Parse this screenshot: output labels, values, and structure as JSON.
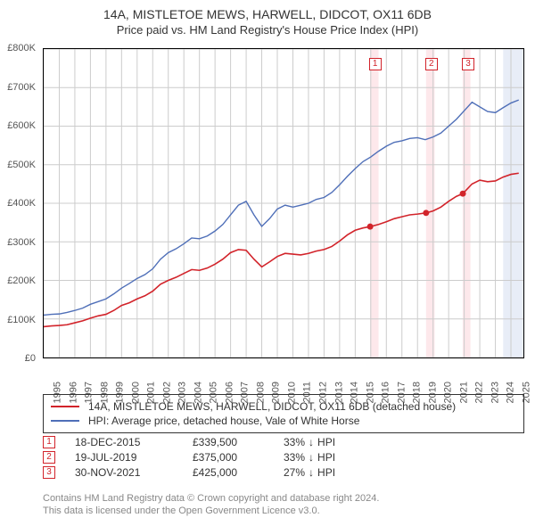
{
  "title": {
    "main": "14A, MISTLETOE MEWS, HARWELL, DIDCOT, OX11 6DB",
    "sub": "Price paid vs. HM Land Registry's House Price Index (HPI)",
    "fontsize_main": 14,
    "fontsize_sub": 13
  },
  "chart": {
    "type": "line",
    "background_color": "#ffffff",
    "border_color": "#000000",
    "grid_color": "#cccccc",
    "ylim": [
      0,
      800000
    ],
    "ytick_step": 100000,
    "yticks": [
      "£0",
      "£100K",
      "£200K",
      "£300K",
      "£400K",
      "£500K",
      "£600K",
      "£700K",
      "£800K"
    ],
    "xlim": [
      1995,
      2025.8
    ],
    "xticks": [
      1995,
      1996,
      1997,
      1998,
      1999,
      2000,
      2001,
      2002,
      2003,
      2004,
      2005,
      2006,
      2007,
      2008,
      2009,
      2010,
      2011,
      2012,
      2013,
      2014,
      2015,
      2016,
      2017,
      2018,
      2019,
      2020,
      2021,
      2022,
      2023,
      2024,
      2025
    ],
    "xtick_fontsize": 11,
    "ytick_fontsize": 11,
    "tick_color": "#555555",
    "bands": [
      {
        "from": 2015.96,
        "to": 2016.5,
        "color": "#fde8eb"
      },
      {
        "from": 2019.55,
        "to": 2020.1,
        "color": "#fde8eb"
      },
      {
        "from": 2021.9,
        "to": 2022.4,
        "color": "#fde8eb"
      },
      {
        "from": 2024.5,
        "to": 2025.8,
        "color": "#e8edf7"
      }
    ],
    "series": [
      {
        "name": "hpi",
        "color": "#4f6fb8",
        "line_width": 1.4,
        "points": [
          [
            1995,
            110000
          ],
          [
            1995.5,
            112000
          ],
          [
            1996,
            113000
          ],
          [
            1996.5,
            117000
          ],
          [
            1997,
            122000
          ],
          [
            1997.5,
            128000
          ],
          [
            1998,
            138000
          ],
          [
            1998.5,
            145000
          ],
          [
            1999,
            152000
          ],
          [
            1999.5,
            165000
          ],
          [
            2000,
            180000
          ],
          [
            2000.5,
            192000
          ],
          [
            2001,
            205000
          ],
          [
            2001.5,
            215000
          ],
          [
            2002,
            230000
          ],
          [
            2002.5,
            255000
          ],
          [
            2003,
            272000
          ],
          [
            2003.5,
            282000
          ],
          [
            2004,
            295000
          ],
          [
            2004.5,
            310000
          ],
          [
            2005,
            308000
          ],
          [
            2005.5,
            315000
          ],
          [
            2006,
            328000
          ],
          [
            2006.5,
            345000
          ],
          [
            2007,
            370000
          ],
          [
            2007.5,
            395000
          ],
          [
            2008,
            405000
          ],
          [
            2008.5,
            370000
          ],
          [
            2009,
            340000
          ],
          [
            2009.5,
            360000
          ],
          [
            2010,
            385000
          ],
          [
            2010.5,
            395000
          ],
          [
            2011,
            390000
          ],
          [
            2011.5,
            395000
          ],
          [
            2012,
            400000
          ],
          [
            2012.5,
            410000
          ],
          [
            2013,
            415000
          ],
          [
            2013.5,
            428000
          ],
          [
            2014,
            448000
          ],
          [
            2014.5,
            470000
          ],
          [
            2015,
            490000
          ],
          [
            2015.5,
            508000
          ],
          [
            2016,
            520000
          ],
          [
            2016.5,
            535000
          ],
          [
            2017,
            548000
          ],
          [
            2017.5,
            558000
          ],
          [
            2018,
            562000
          ],
          [
            2018.5,
            568000
          ],
          [
            2019,
            570000
          ],
          [
            2019.5,
            565000
          ],
          [
            2020,
            572000
          ],
          [
            2020.5,
            582000
          ],
          [
            2021,
            600000
          ],
          [
            2021.5,
            618000
          ],
          [
            2022,
            640000
          ],
          [
            2022.5,
            662000
          ],
          [
            2023,
            650000
          ],
          [
            2023.5,
            638000
          ],
          [
            2024,
            635000
          ],
          [
            2024.5,
            648000
          ],
          [
            2025,
            660000
          ],
          [
            2025.5,
            668000
          ]
        ]
      },
      {
        "name": "price-paid",
        "color": "#d2232a",
        "line_width": 1.6,
        "points": [
          [
            1995,
            80000
          ],
          [
            1995.5,
            82000
          ],
          [
            1996,
            83000
          ],
          [
            1996.5,
            85000
          ],
          [
            1997,
            90000
          ],
          [
            1997.5,
            95000
          ],
          [
            1998,
            102000
          ],
          [
            1998.5,
            108000
          ],
          [
            1999,
            112000
          ],
          [
            1999.5,
            122000
          ],
          [
            2000,
            135000
          ],
          [
            2000.5,
            142000
          ],
          [
            2001,
            152000
          ],
          [
            2001.5,
            160000
          ],
          [
            2002,
            172000
          ],
          [
            2002.5,
            190000
          ],
          [
            2003,
            200000
          ],
          [
            2003.5,
            208000
          ],
          [
            2004,
            218000
          ],
          [
            2004.5,
            228000
          ],
          [
            2005,
            226000
          ],
          [
            2005.5,
            232000
          ],
          [
            2006,
            242000
          ],
          [
            2006.5,
            255000
          ],
          [
            2007,
            272000
          ],
          [
            2007.5,
            280000
          ],
          [
            2008,
            278000
          ],
          [
            2008.5,
            255000
          ],
          [
            2009,
            235000
          ],
          [
            2009.5,
            248000
          ],
          [
            2010,
            262000
          ],
          [
            2010.5,
            270000
          ],
          [
            2011,
            268000
          ],
          [
            2011.5,
            266000
          ],
          [
            2012,
            270000
          ],
          [
            2012.5,
            276000
          ],
          [
            2013,
            280000
          ],
          [
            2013.5,
            288000
          ],
          [
            2014,
            302000
          ],
          [
            2014.5,
            318000
          ],
          [
            2015,
            330000
          ],
          [
            2015.5,
            336000
          ],
          [
            2015.96,
            339500
          ],
          [
            2016.5,
            345000
          ],
          [
            2017,
            352000
          ],
          [
            2017.5,
            360000
          ],
          [
            2018,
            365000
          ],
          [
            2018.5,
            370000
          ],
          [
            2019,
            372000
          ],
          [
            2019.55,
            375000
          ],
          [
            2020,
            380000
          ],
          [
            2020.5,
            390000
          ],
          [
            2021,
            405000
          ],
          [
            2021.5,
            418000
          ],
          [
            2021.91,
            425000
          ],
          [
            2022.5,
            450000
          ],
          [
            2023,
            460000
          ],
          [
            2023.5,
            456000
          ],
          [
            2024,
            458000
          ],
          [
            2024.5,
            468000
          ],
          [
            2025,
            475000
          ],
          [
            2025.5,
            478000
          ]
        ]
      }
    ],
    "sale_markers": [
      {
        "label": "1",
        "x": 2015.96,
        "y": 339500,
        "color": "#d2232a"
      },
      {
        "label": "2",
        "x": 2019.55,
        "y": 375000,
        "color": "#d2232a"
      },
      {
        "label": "3",
        "x": 2021.91,
        "y": 425000,
        "color": "#d2232a"
      }
    ],
    "top_markers": [
      {
        "label": "1",
        "x": 2016.2,
        "color": "#d2232a"
      },
      {
        "label": "2",
        "x": 2019.8,
        "color": "#d2232a"
      },
      {
        "label": "3",
        "x": 2022.15,
        "color": "#d2232a"
      }
    ]
  },
  "legend": {
    "border_color": "#333333",
    "items": [
      {
        "color": "#d2232a",
        "label": "14A, MISTLETOE MEWS, HARWELL, DIDCOT, OX11 6DB (detached house)"
      },
      {
        "color": "#4f6fb8",
        "label": "HPI: Average price, detached house, Vale of White Horse"
      }
    ]
  },
  "datapoints": [
    {
      "marker": "1",
      "marker_color": "#d2232a",
      "date": "18-DEC-2015",
      "price": "£339,500",
      "diff_pct": "33%",
      "diff_dir": "↓",
      "diff_vs": "HPI"
    },
    {
      "marker": "2",
      "marker_color": "#d2232a",
      "date": "19-JUL-2019",
      "price": "£375,000",
      "diff_pct": "33%",
      "diff_dir": "↓",
      "diff_vs": "HPI"
    },
    {
      "marker": "3",
      "marker_color": "#d2232a",
      "date": "30-NOV-2021",
      "price": "£425,000",
      "diff_pct": "27%",
      "diff_dir": "↓",
      "diff_vs": "HPI"
    }
  ],
  "footer": {
    "line1": "Contains HM Land Registry data © Crown copyright and database right 2024.",
    "line2": "This data is licensed under the Open Government Licence v3.0.",
    "color": "#888888",
    "fontsize": 11
  }
}
